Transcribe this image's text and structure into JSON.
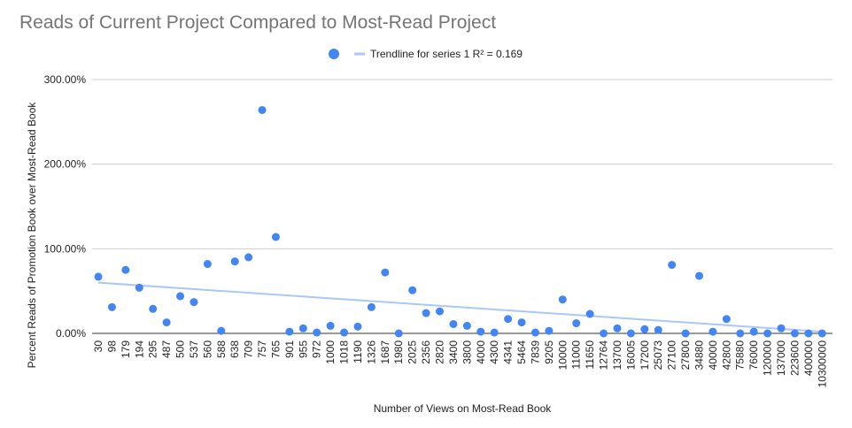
{
  "chart_data": {
    "type": "scatter",
    "title": "Reads of Current Project Compared to Most-Read Project",
    "xlabel": "Number of Views on Most-Read Book",
    "ylabel": "Percent Reads of Promotion Book over Most-Read Book",
    "ylim": [
      0,
      3
    ],
    "y_ticks": [
      "0.00%",
      "100.00%",
      "200.00%",
      "300.00%"
    ],
    "grid": true,
    "legend_position": "top",
    "series": [
      {
        "color": "#4285f4",
        "x": [
          30,
          98,
          179,
          194,
          295,
          487,
          500,
          537,
          560,
          588,
          638,
          709,
          757,
          765,
          901,
          955,
          972,
          1000,
          1018,
          1190,
          1326,
          1687,
          1980,
          2025,
          2356,
          2820,
          3400,
          3800,
          4000,
          4300,
          4341,
          5464,
          7839,
          9205,
          10000,
          11000,
          11650,
          12764,
          13700,
          16005,
          17200,
          25073,
          27100,
          27800,
          34880,
          40000,
          42800,
          75880,
          76000,
          120000,
          137000,
          223600,
          400000,
          10300000
        ],
        "values": [
          0.67,
          0.31,
          0.75,
          0.54,
          0.29,
          0.13,
          0.44,
          0.37,
          0.82,
          0.03,
          0.85,
          0.9,
          2.64,
          1.14,
          0.02,
          0.06,
          0.01,
          0.09,
          0.01,
          0.08,
          0.31,
          0.72,
          0.0,
          0.51,
          0.24,
          0.26,
          0.11,
          0.09,
          0.02,
          0.01,
          0.17,
          0.13,
          0.01,
          0.03,
          0.4,
          0.12,
          0.23,
          0.0,
          0.06,
          0.0,
          0.05,
          0.04,
          0.81,
          0.0,
          0.68,
          0.02,
          0.17,
          0.0,
          0.02,
          0.0,
          0.06,
          0.0,
          0.0,
          0.0
        ]
      }
    ],
    "trendline": {
      "label": "Trendline for series 1 R² = 0.169",
      "color": "#a8c7fa",
      "start_value": 0.6,
      "end_value": 0.02
    }
  }
}
